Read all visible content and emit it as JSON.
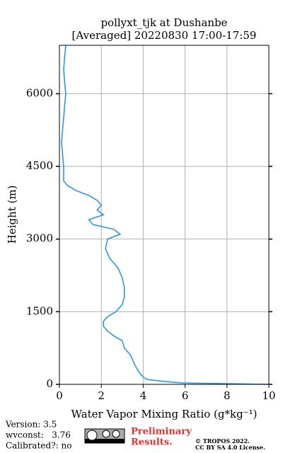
{
  "chart_data": {
    "type": "profile",
    "title": [
      "pollyxt_tjk at Dushanbe",
      "[Averaged] 20220830 17:00-17:59"
    ],
    "x_label": "Water Vapor Mixing Ratio (g*kg⁻¹)",
    "y_label": "Height (m)",
    "color": "#1e90ff",
    "y": [
      0,
      30,
      60,
      100,
      150,
      250,
      400,
      600,
      750,
      900,
      1000,
      1100,
      1200,
      1300,
      1400,
      1500,
      1650,
      1800,
      2000,
      2200,
      2400,
      2600,
      2800,
      3000,
      3100,
      3200,
      3300,
      3400,
      3500,
      3600,
      3700,
      3800,
      3900,
      4000,
      4100,
      4200,
      4500,
      5000,
      5500,
      6000,
      6500,
      7000
    ],
    "values": [
      10,
      5.8,
      5,
      4.2,
      4.0,
      3.8,
      3.6,
      3.4,
      3.1,
      3.0,
      2.6,
      2.3,
      2.1,
      2.1,
      2.3,
      2.7,
      3.0,
      3.1,
      3.1,
      3.0,
      2.8,
      2.4,
      2.2,
      2.3,
      2.9,
      2.6,
      1.6,
      1.4,
      2.1,
      1.8,
      2.0,
      1.8,
      1.4,
      0.8,
      0.4,
      0.2,
      0.2,
      0.1,
      0.2,
      0.3,
      0.2,
      0.3
    ],
    "xlim": [
      0,
      10
    ],
    "xticks": [
      0,
      2,
      4,
      6,
      8,
      10
    ],
    "ylim": [
      0,
      7000
    ],
    "yticks": [
      0,
      1500,
      3000,
      4500,
      6000
    ],
    "grid": true
  },
  "footer": {
    "version": "Version: 3.5",
    "wvconst": "wvconst:   3.76",
    "calibrated": "Calibrated?: no",
    "preliminary": [
      "Preliminary",
      "Results."
    ],
    "copyright": [
      "© TROPOS 2022.",
      "CC BY SA 4.0 License."
    ]
  }
}
